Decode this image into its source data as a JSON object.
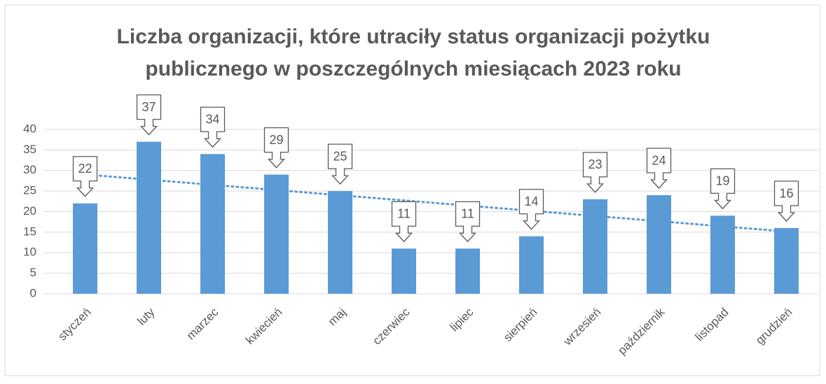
{
  "chart_data": {
    "type": "bar",
    "title": [
      "Liczba organizacji, które utraciły status organizacji pożytku",
      "publicznego w poszczególnych miesiącach 2023 roku"
    ],
    "categories": [
      "styczeń",
      "luty",
      "marzec",
      "kwiecień",
      "maj",
      "czerwiec",
      "lipiec",
      "sierpień",
      "wrzesień",
      "październik",
      "listopad",
      "grudzień"
    ],
    "values": [
      22,
      37,
      34,
      29,
      25,
      11,
      11,
      14,
      23,
      24,
      19,
      16
    ],
    "color": "#5b9bd5",
    "ylim": [
      0,
      40
    ],
    "yticks": [
      0,
      5,
      10,
      15,
      20,
      25,
      30,
      35,
      40
    ],
    "grid": true,
    "trendline": "linear",
    "trendline_color": "#5b9bd5"
  }
}
